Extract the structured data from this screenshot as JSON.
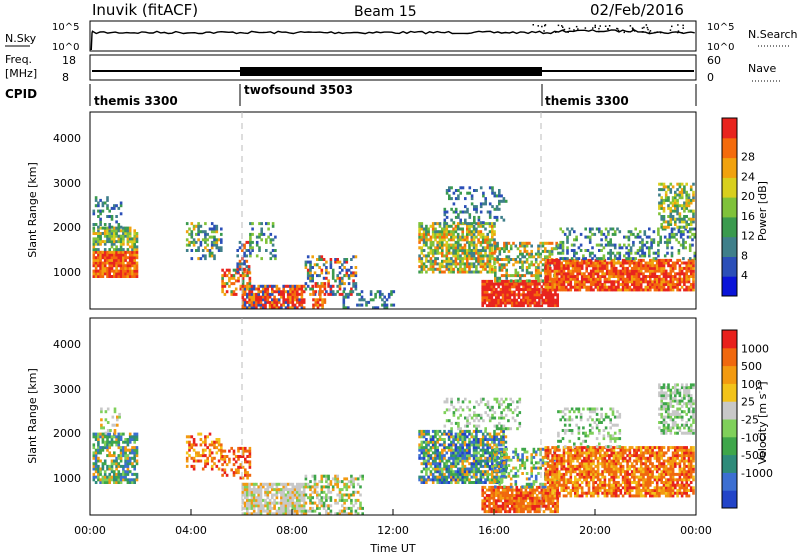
{
  "header": {
    "station": "Inuvik (fitACF)",
    "beam": "Beam 15",
    "date": "02/Feb/2016"
  },
  "nsky_panel": {
    "left_label": "N.Sky",
    "right_label": "N.Search",
    "left_ticks": [
      "10^5",
      "10^0"
    ],
    "right_ticks": [
      "10^5",
      "10^0"
    ]
  },
  "freq_panel": {
    "left_label_1": "Freq.",
    "left_label_2": "[MHz]",
    "left_ticks": [
      "18",
      "8"
    ],
    "right_ticks": [
      "60",
      "0"
    ],
    "right_label": "Nave"
  },
  "cpid_panel": {
    "label": "CPID",
    "segments": [
      {
        "name": "themis 3300",
        "start": "00:00",
        "end": "06:00"
      },
      {
        "name": "twofsound 3503",
        "start": "06:00",
        "end": "18:00"
      },
      {
        "name": "themis 3300",
        "start": "18:00",
        "end": "00:00"
      }
    ]
  },
  "chart_data": [
    {
      "type": "heatmap",
      "title": "Power",
      "ylabel": "Slant Range [km]",
      "ylim": [
        200,
        4600
      ],
      "y_ticks": [
        "1000",
        "2000",
        "3000",
        "4000"
      ],
      "colorbar_label": "Power [dB]",
      "colorbar_ticks": [
        "28",
        "24",
        "20",
        "16",
        "12",
        "8",
        "4"
      ],
      "colorbar_colors": [
        "#0a14d8",
        "#2b4fb8",
        "#3f7f8a",
        "#3a9a4e",
        "#7fc23a",
        "#d8cf1e",
        "#f1a20e",
        "#f46b0c",
        "#e8241e"
      ],
      "xlim": [
        "00:00",
        "24:00"
      ]
    },
    {
      "type": "heatmap",
      "title": "Velocity",
      "ylabel": "Slant Range [km]",
      "ylim": [
        200,
        4600
      ],
      "y_ticks": [
        "1000",
        "2000",
        "3000",
        "4000"
      ],
      "colorbar_label": "Velocity [m s^-1]",
      "colorbar_ticks": [
        "1000",
        "500",
        "100",
        "25",
        "-25",
        "-100",
        "-500",
        "-1000"
      ],
      "colorbar_colors": [
        "#2244c8",
        "#3c6fd2",
        "#2e8b7a",
        "#3ea64a",
        "#7fd05a",
        "#c8c8c8",
        "#f3c31a",
        "#f39a10",
        "#f0680e",
        "#e8201c"
      ],
      "xlim": [
        "00:00",
        "24:00"
      ]
    }
  ],
  "x_axis": {
    "label": "Time UT",
    "ticks": [
      "00:00",
      "04:00",
      "08:00",
      "12:00",
      "16:00",
      "20:00",
      "00:00"
    ]
  }
}
